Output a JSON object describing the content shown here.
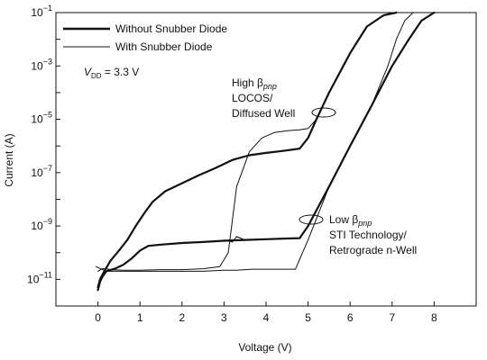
{
  "chart_data": {
    "type": "line",
    "xlabel": "Voltage (V)",
    "ylabel": "Current (A)",
    "x_scale": "linear",
    "y_scale": "log",
    "xlim": [
      -1,
      9
    ],
    "ylim": [
      1e-12,
      0.1
    ],
    "grid": false,
    "legend_position": "top-left",
    "x_ticks": [
      {
        "value": 0,
        "label": "0"
      },
      {
        "value": 1,
        "label": "1"
      },
      {
        "value": 2,
        "label": "2"
      },
      {
        "value": 3,
        "label": "3"
      },
      {
        "value": 4,
        "label": "4"
      },
      {
        "value": 5,
        "label": "5"
      },
      {
        "value": 6,
        "label": "6"
      },
      {
        "value": 7,
        "label": "7"
      },
      {
        "value": 8,
        "label": "8"
      }
    ],
    "y_ticks": [
      {
        "value": 1e-11,
        "base": "10",
        "exp": "−11"
      },
      {
        "value": 1e-09,
        "base": "10",
        "exp": "−9"
      },
      {
        "value": 1e-07,
        "base": "10",
        "exp": "−7"
      },
      {
        "value": 1e-05,
        "base": "10",
        "exp": "−5"
      },
      {
        "value": 0.001,
        "base": "10",
        "exp": "−3"
      },
      {
        "value": 0.1,
        "base": "10",
        "exp": "−1"
      }
    ],
    "legend": {
      "without": "Without Snubber Diode",
      "with": "With Snubber Diode"
    },
    "vdd": {
      "prefix": "V",
      "sub": "DD",
      "value": " = 3.3 V"
    },
    "annotations": {
      "high": {
        "line1": "High β",
        "sub": "pnp",
        "line2": "LOCOS/",
        "line3": "Diffused Well"
      },
      "low": {
        "line1": "Low β",
        "sub": "pnp",
        "line2": "STI Technology/",
        "line3": "Retrograde n-Well"
      }
    },
    "series": [
      {
        "name": "Without Snubber Diode",
        "group": "high",
        "style": "thick",
        "x": [
          0.0,
          0.05,
          0.15,
          0.3,
          0.5,
          0.7,
          0.9,
          1.1,
          1.3,
          1.6,
          2.0,
          2.4,
          2.8,
          3.2,
          3.6,
          4.0,
          4.4,
          4.8,
          5.0,
          5.2,
          5.5,
          6.0,
          6.4,
          6.8,
          7.1
        ],
        "y": [
          5e-12,
          1e-11,
          2e-11,
          5e-11,
          1.2e-10,
          3e-10,
          1e-09,
          3e-09,
          8e-09,
          2e-08,
          4e-08,
          8e-08,
          1.5e-07,
          3e-07,
          4.5e-07,
          5.5e-07,
          6.5e-07,
          8e-07,
          2e-06,
          1e-05,
          0.0001,
          0.003,
          0.03,
          0.08,
          0.1
        ]
      },
      {
        "name": "With Snubber Diode",
        "group": "high",
        "style": "thin",
        "x": [
          0.0,
          0.1,
          0.2,
          0.3,
          0.6,
          1.0,
          1.5,
          2.0,
          2.5,
          2.9,
          3.1,
          3.3,
          3.6,
          3.9,
          4.2,
          4.5,
          4.8,
          5.0,
          5.2,
          5.5,
          6.0,
          6.4,
          6.8,
          7.0
        ],
        "y": [
          2e-11,
          2.5e-11,
          2.5e-11,
          2.3e-11,
          2.2e-11,
          2.2e-11,
          2.3e-11,
          2.3e-11,
          2.5e-11,
          3e-11,
          1e-10,
          3e-08,
          6e-07,
          2e-06,
          3.2e-06,
          3.7e-06,
          4e-06,
          4.5e-06,
          1e-05,
          0.0001,
          0.003,
          0.03,
          0.08,
          0.1
        ]
      },
      {
        "name": "Without Snubber Diode",
        "group": "low",
        "style": "thick",
        "x": [
          0.0,
          0.05,
          0.1,
          0.2,
          0.4,
          0.6,
          0.8,
          1.0,
          1.2,
          1.5,
          2.0,
          2.5,
          3.0,
          3.5,
          4.0,
          4.5,
          4.8,
          5.0,
          5.5,
          6.0,
          6.5,
          7.0,
          7.4,
          7.7,
          8.0
        ],
        "y": [
          4e-12,
          8e-12,
          1.2e-11,
          2e-11,
          2.5e-11,
          3.5e-11,
          6e-11,
          1.2e-10,
          1.8e-10,
          2e-10,
          2.3e-10,
          2.5e-10,
          2.8e-10,
          3e-10,
          3.2e-10,
          3.4e-10,
          3.5e-10,
          1e-09,
          3e-08,
          1e-06,
          3e-05,
          0.001,
          0.01,
          0.05,
          0.1
        ]
      },
      {
        "name": "With Snubber Diode",
        "group": "low",
        "style": "thin",
        "x": [
          -0.05,
          0.2,
          0.5,
          1.0,
          1.5,
          2.0,
          2.5,
          3.0,
          3.3,
          3.5,
          3.7,
          4.0,
          4.4,
          4.7,
          5.0,
          5.5,
          6.0,
          6.5,
          6.9,
          7.1,
          7.3,
          7.5
        ],
        "y": [
          3e-11,
          2e-11,
          2e-11,
          2e-11,
          2e-11,
          2e-11,
          2e-11,
          2.2e-11,
          2.2e-11,
          2.3e-11,
          2.4e-11,
          2.4e-11,
          2.4e-11,
          2.4e-11,
          3e-10,
          3e-08,
          1e-06,
          3e-05,
          0.001,
          0.01,
          0.05,
          0.1
        ]
      },
      {
        "name": "Without Snubber Diode",
        "group": "low-ext",
        "style": "thin",
        "x": [
          3.0,
          3.2,
          3.3,
          3.5,
          4.0,
          4.5,
          4.8
        ],
        "y": [
          3e-10,
          2.5e-10,
          4e-10,
          3e-10,
          3.2e-10,
          3.4e-10,
          3.5e-10
        ]
      }
    ]
  }
}
